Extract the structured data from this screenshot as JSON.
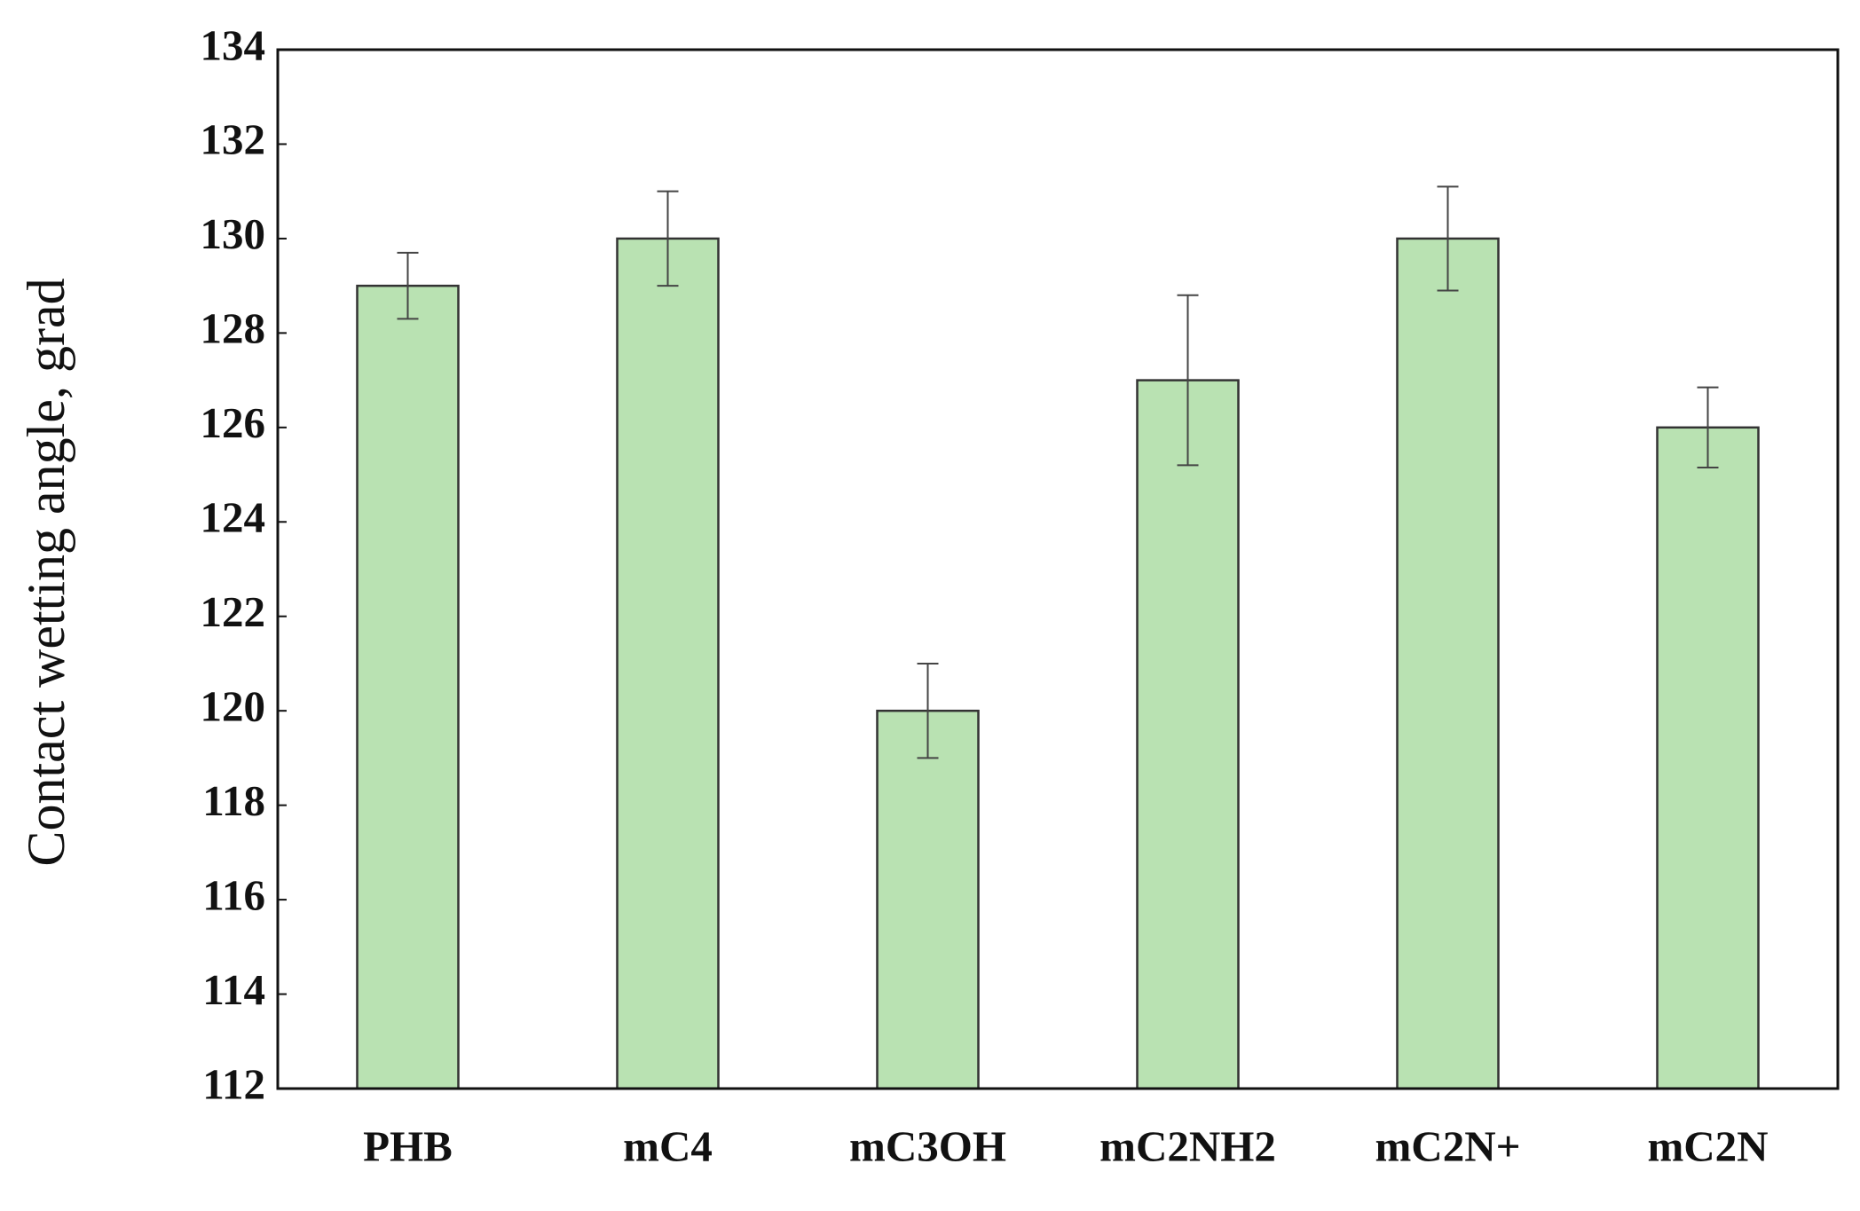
{
  "chart_data": {
    "type": "bar",
    "y_label": "Contact wetting angle, grad",
    "categories": [
      "PHB",
      "mC4",
      "mC3OH",
      "mC2NH2",
      "mC2N+",
      "mC2N"
    ],
    "values": [
      129,
      130,
      120,
      127,
      130,
      126
    ],
    "errors": [
      0.7,
      1,
      1,
      1.8,
      1.1,
      0.85
    ],
    "color": "#b9e2b2",
    "ylim": [
      112,
      134
    ],
    "yticks": [
      112,
      114,
      116,
      118,
      120,
      122,
      124,
      126,
      128,
      130,
      132,
      134
    ],
    "grid": false
  }
}
